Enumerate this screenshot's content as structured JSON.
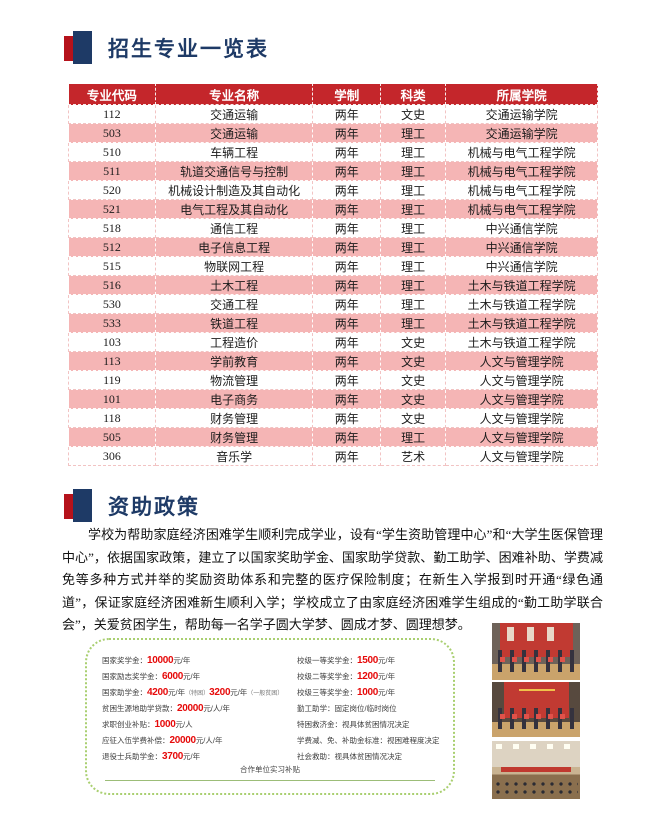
{
  "colors": {
    "navy": "#1e3a66",
    "icon_red": "#b5121b",
    "header_red": "#c4262b",
    "row_pink": "#f5b5b5",
    "number_red": "#e60a0a",
    "box_green": "#a9cf70"
  },
  "majors": {
    "title": "招生专业一览表",
    "table": {
      "headers": [
        "专业代码",
        "专业名称",
        "学制",
        "科类",
        "所属学院"
      ],
      "rows": [
        [
          "112",
          "交通运输",
          "两年",
          "文史",
          "交通运输学院"
        ],
        [
          "503",
          "交通运输",
          "两年",
          "理工",
          "交通运输学院"
        ],
        [
          "510",
          "车辆工程",
          "两年",
          "理工",
          "机械与电气工程学院"
        ],
        [
          "511",
          "轨道交通信号与控制",
          "两年",
          "理工",
          "机械与电气工程学院"
        ],
        [
          "520",
          "机械设计制造及其自动化",
          "两年",
          "理工",
          "机械与电气工程学院"
        ],
        [
          "521",
          "电气工程及其自动化",
          "两年",
          "理工",
          "机械与电气工程学院"
        ],
        [
          "518",
          "通信工程",
          "两年",
          "理工",
          "中兴通信学院"
        ],
        [
          "512",
          "电子信息工程",
          "两年",
          "理工",
          "中兴通信学院"
        ],
        [
          "515",
          "物联网工程",
          "两年",
          "理工",
          "中兴通信学院"
        ],
        [
          "516",
          "土木工程",
          "两年",
          "理工",
          "土木与铁道工程学院"
        ],
        [
          "530",
          "交通工程",
          "两年",
          "理工",
          "土木与铁道工程学院"
        ],
        [
          "533",
          "铁道工程",
          "两年",
          "理工",
          "土木与铁道工程学院"
        ],
        [
          "103",
          "工程造价",
          "两年",
          "文史",
          "土木与铁道工程学院"
        ],
        [
          "113",
          "学前教育",
          "两年",
          "文史",
          "人文与管理学院"
        ],
        [
          "119",
          "物流管理",
          "两年",
          "文史",
          "人文与管理学院"
        ],
        [
          "101",
          "电子商务",
          "两年",
          "文史",
          "人文与管理学院"
        ],
        [
          "118",
          "财务管理",
          "两年",
          "文史",
          "人文与管理学院"
        ],
        [
          "505",
          "财务管理",
          "两年",
          "理工",
          "人文与管理学院"
        ],
        [
          "306",
          "音乐学",
          "两年",
          "艺术",
          "人文与管理学院"
        ]
      ]
    }
  },
  "aid": {
    "title": "资助政策",
    "paragraph": "学校为帮助家庭经济困难学生顺利完成学业，设有“学生资助管理中心”和“大学生医保管理中心”，依据国家政策，建立了以国家奖助学金、国家助学贷款、勤工助学、困难补助、学费减免等多种方式并举的奖励资助体系和完整的医疗保险制度；在新生入学报到时开通“绿色通道”，保证家庭经济困难新生顺利入学；学校成立了由家庭经济困难学生组成的“勤工助学联合会”，关爱贫困学生，帮助每一名学子圆大学梦、圆成才梦、圆理想梦。",
    "box": {
      "left_items": [
        [
          [
            "国家奖学金：",
            "label"
          ],
          [
            "10000",
            "num"
          ],
          [
            "元/年",
            "unit"
          ]
        ],
        [
          [
            "国家励志奖学金：",
            "label"
          ],
          [
            "6000",
            "num"
          ],
          [
            "元/年",
            "unit"
          ]
        ],
        [
          [
            "国家助学金：",
            "label"
          ],
          [
            "4200",
            "num"
          ],
          [
            "元/年",
            "unit"
          ],
          [
            "（特困）",
            "small"
          ],
          [
            "3200",
            "num"
          ],
          [
            "元/年",
            "unit"
          ],
          [
            "（一般贫困）",
            "small"
          ]
        ],
        [
          [
            "贫困生源地助学贷款：",
            "label"
          ],
          [
            "20000",
            "num"
          ],
          [
            "元/人/年",
            "unit"
          ]
        ],
        [
          [
            "求职创业补贴：",
            "label"
          ],
          [
            "1000",
            "num"
          ],
          [
            "元/人",
            "unit"
          ]
        ],
        [
          [
            "应征入伍学费补偿：",
            "label"
          ],
          [
            "20000",
            "num"
          ],
          [
            "元/人/年",
            "unit"
          ]
        ],
        [
          [
            "退役士兵助学金：",
            "label"
          ],
          [
            "3700",
            "num"
          ],
          [
            "元/年",
            "unit"
          ]
        ]
      ],
      "right_items": [
        [
          [
            "校级一等奖学金：",
            "label"
          ],
          [
            "1500",
            "num"
          ],
          [
            "元/年",
            "unit"
          ]
        ],
        [
          [
            "校级二等奖学金：",
            "label"
          ],
          [
            "1200",
            "num"
          ],
          [
            "元/年",
            "unit"
          ]
        ],
        [
          [
            "校级三等奖学金：",
            "label"
          ],
          [
            "1000",
            "num"
          ],
          [
            "元/年",
            "unit"
          ]
        ],
        [
          [
            "勤工助学：固定岗位/临时岗位",
            "label"
          ]
        ],
        [
          [
            "特困救济金：视具体贫困情况决定",
            "label"
          ]
        ],
        [
          [
            "学费减、免、补助金标准：视困难程度决定",
            "label"
          ]
        ],
        [
          [
            "社会救助：视具体贫困情况决定",
            "label"
          ]
        ]
      ],
      "footer": "合作单位实习补贴"
    },
    "photos": [
      {
        "name": "scholarship-award-ceremony-photo-1"
      },
      {
        "name": "scholarship-award-ceremony-photo-2"
      },
      {
        "name": "assembly-hall-photo"
      }
    ]
  }
}
